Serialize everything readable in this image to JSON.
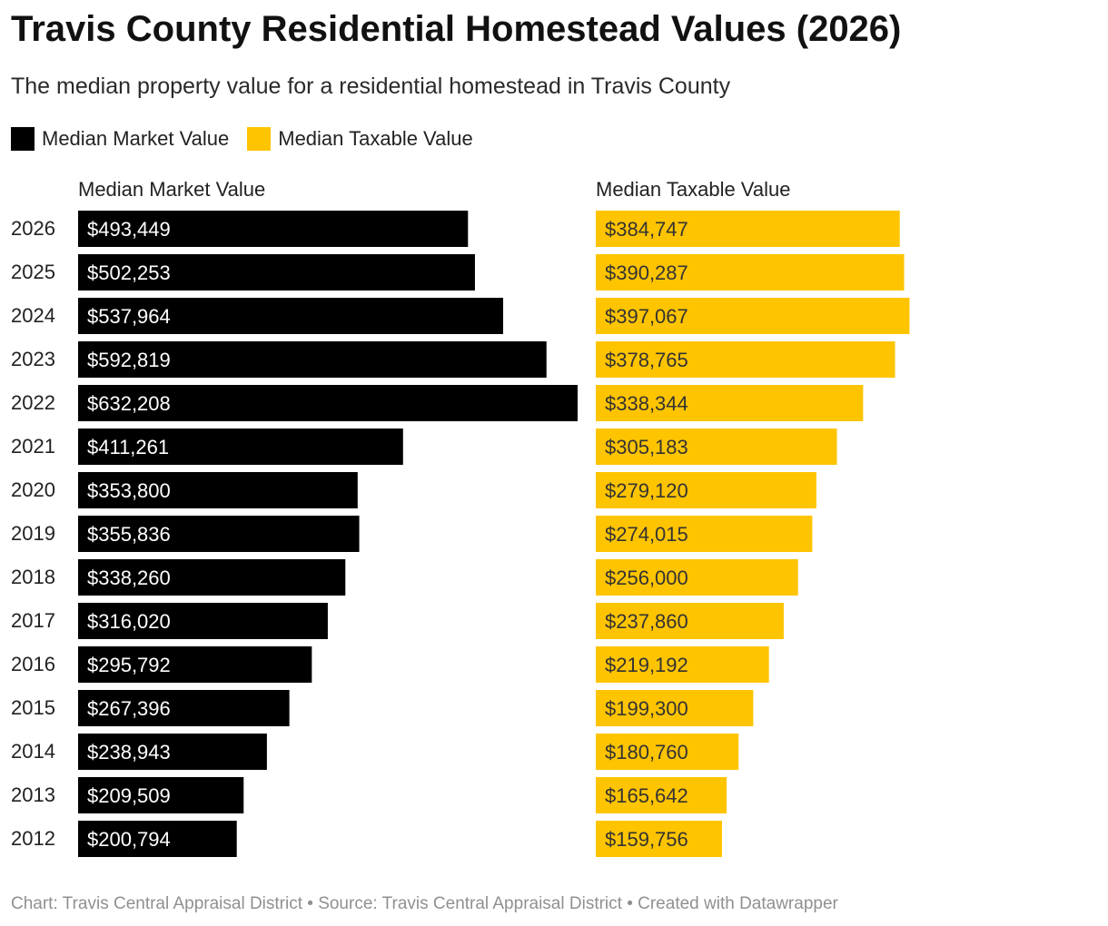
{
  "title": "Travis County Residential Homestead Values (2026)",
  "subtitle": "The median property value for a residential homestead in Travis County",
  "legend": [
    {
      "label": "Median Market Value",
      "color": "#000000"
    },
    {
      "label": "Median Taxable Value",
      "color": "#ffc400"
    }
  ],
  "footer": "Chart: Travis Central Appraisal District • Source: Travis Central Appraisal District • Created with Datawrapper",
  "chart_data": {
    "type": "bar",
    "orientation": "horizontal",
    "categories": [
      "2026",
      "2025",
      "2024",
      "2023",
      "2022",
      "2021",
      "2020",
      "2019",
      "2018",
      "2017",
      "2016",
      "2015",
      "2014",
      "2013",
      "2012"
    ],
    "series": [
      {
        "name": "Median Market Value",
        "color": "#000000",
        "label_color": "#ffffff",
        "values": [
          493449,
          502253,
          537964,
          592819,
          632208,
          411261,
          353800,
          355836,
          338260,
          316020,
          295792,
          267396,
          238943,
          209509,
          200794
        ],
        "labels": [
          "$493,449",
          "$502,253",
          "$537,964",
          "$592,819",
          "$632,208",
          "$411,261",
          "$353,800",
          "$355,836",
          "$338,260",
          "$316,020",
          "$295,792",
          "$267,396",
          "$238,943",
          "$209,509",
          "$200,794"
        ]
      },
      {
        "name": "Median Taxable Value",
        "color": "#ffc400",
        "label_color": "#333333",
        "values": [
          384747,
          390287,
          397067,
          378765,
          338344,
          305183,
          279120,
          274015,
          256000,
          237860,
          219192,
          199300,
          180760,
          165642,
          159756
        ],
        "labels": [
          "$384,747",
          "$390,287",
          "$397,067",
          "$378,765",
          "$338,344",
          "$305,183",
          "$279,120",
          "$274,015",
          "$256,000",
          "$237,860",
          "$219,192",
          "$199,300",
          "$180,760",
          "$165,642",
          "$159,756"
        ]
      }
    ],
    "grid": false,
    "legend_position": "top-left"
  }
}
